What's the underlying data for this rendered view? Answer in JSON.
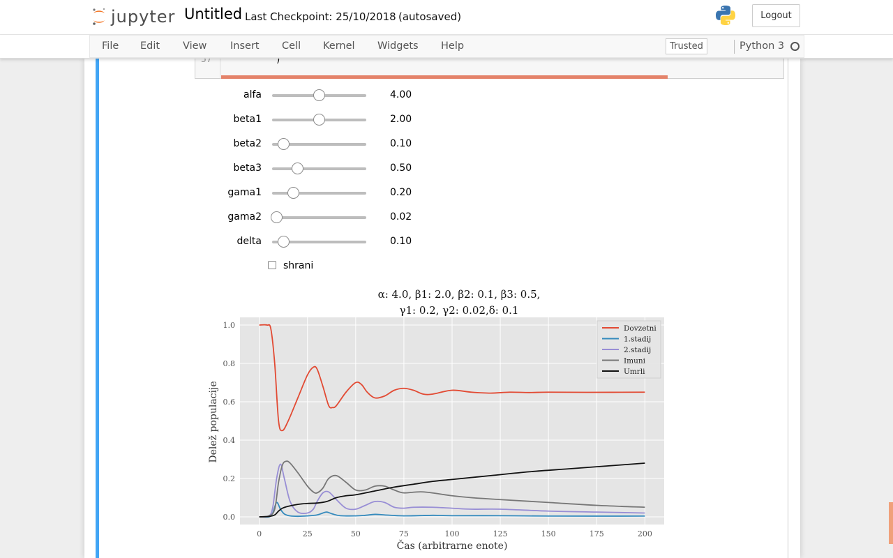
{
  "header": {
    "logo_text": "jupyter",
    "notebook_name": "Untitled",
    "checkpoint": "Last Checkpoint: 25/10/2018",
    "autosave": "(autosaved)",
    "logout_label": "Logout"
  },
  "menubar": {
    "items": [
      "File",
      "Edit",
      "View",
      "Insert",
      "Cell",
      "Kernel",
      "Widgets",
      "Help"
    ],
    "trusted_label": "Trusted",
    "kernel_name": "Python 3"
  },
  "cell": {
    "line_number": "57",
    "code_text": ")"
  },
  "widgets": {
    "sliders": [
      {
        "label": "alfa",
        "value": "4.00",
        "position": 0.5
      },
      {
        "label": "beta1",
        "value": "2.00",
        "position": 0.5
      },
      {
        "label": "beta2",
        "value": "0.10",
        "position": 0.1
      },
      {
        "label": "beta3",
        "value": "0.50",
        "position": 0.26
      },
      {
        "label": "gama1",
        "value": "0.20",
        "position": 0.21
      },
      {
        "label": "gama2",
        "value": "0.02",
        "position": 0.02
      },
      {
        "label": "delta",
        "value": "0.10",
        "position": 0.1
      }
    ],
    "checkbox": {
      "label": "shrani",
      "checked": false
    }
  },
  "chart_data": {
    "type": "line",
    "title_line1": "α: 4.0, β1: 2.0, β2: 0.1, β3: 0.5,",
    "title_line2": "γ1: 0.2, γ2: 0.02,δ: 0.1",
    "xlabel": "Čas (arbitrarne enote)",
    "ylabel": "Delež populacije",
    "xlim": [
      -10,
      210
    ],
    "ylim": [
      -0.04,
      1.04
    ],
    "xticks": [
      0,
      25,
      50,
      75,
      100,
      125,
      150,
      175,
      200
    ],
    "yticks": [
      0.0,
      0.2,
      0.4,
      0.6,
      0.8,
      1.0
    ],
    "grid": true,
    "legend_position": "top-right",
    "series": [
      {
        "name": "Dovzetni",
        "color": "#e24a33",
        "x": [
          0,
          4,
          6,
          8,
          10,
          12,
          15,
          20,
          25,
          28,
          30,
          33,
          36,
          38,
          40,
          45,
          50,
          53,
          56,
          60,
          65,
          70,
          75,
          80,
          85,
          90,
          100,
          110,
          120,
          130,
          140,
          150,
          170,
          200
        ],
        "y": [
          1.0,
          1.0,
          0.98,
          0.8,
          0.5,
          0.45,
          0.5,
          0.62,
          0.74,
          0.78,
          0.77,
          0.68,
          0.58,
          0.57,
          0.58,
          0.65,
          0.7,
          0.69,
          0.65,
          0.62,
          0.63,
          0.66,
          0.67,
          0.66,
          0.64,
          0.64,
          0.66,
          0.65,
          0.645,
          0.65,
          0.648,
          0.65,
          0.649,
          0.65
        ]
      },
      {
        "name": "1.stadij",
        "color": "#348abd",
        "x": [
          0,
          5,
          7,
          9,
          11,
          13,
          16,
          20,
          25,
          30,
          33,
          35,
          38,
          42,
          50,
          55,
          60,
          65,
          75,
          90,
          100,
          125,
          150,
          200
        ],
        "y": [
          0.0,
          0.0,
          0.02,
          0.075,
          0.04,
          0.015,
          0.005,
          0.003,
          0.005,
          0.01,
          0.02,
          0.025,
          0.015,
          0.006,
          0.005,
          0.008,
          0.013,
          0.01,
          0.005,
          0.008,
          0.006,
          0.006,
          0.004,
          0.004
        ]
      },
      {
        "name": "2.stadij",
        "color": "#988ed5",
        "x": [
          0,
          5,
          7,
          9,
          11,
          13,
          16,
          20,
          25,
          28,
          30,
          33,
          36,
          40,
          45,
          50,
          55,
          60,
          65,
          70,
          75,
          80,
          90,
          100,
          110,
          125,
          150,
          175,
          200
        ],
        "y": [
          0.0,
          0.005,
          0.05,
          0.2,
          0.275,
          0.2,
          0.08,
          0.025,
          0.02,
          0.04,
          0.08,
          0.125,
          0.13,
          0.09,
          0.045,
          0.04,
          0.06,
          0.08,
          0.075,
          0.05,
          0.045,
          0.05,
          0.05,
          0.045,
          0.04,
          0.04,
          0.03,
          0.025,
          0.02
        ]
      },
      {
        "name": "Imuni",
        "color": "#777777",
        "x": [
          0,
          5,
          8,
          10,
          12,
          14,
          16,
          20,
          25,
          28,
          30,
          33,
          36,
          40,
          45,
          50,
          55,
          60,
          65,
          70,
          75,
          85,
          100,
          110,
          125,
          150,
          175,
          200
        ],
        "y": [
          0.0,
          0.005,
          0.04,
          0.18,
          0.27,
          0.29,
          0.28,
          0.23,
          0.16,
          0.13,
          0.125,
          0.15,
          0.2,
          0.215,
          0.18,
          0.14,
          0.14,
          0.16,
          0.16,
          0.14,
          0.125,
          0.13,
          0.11,
          0.1,
          0.09,
          0.075,
          0.06,
          0.05
        ]
      },
      {
        "name": "Umrli",
        "color": "#111111",
        "x": [
          0,
          5,
          8,
          10,
          12,
          15,
          20,
          25,
          30,
          35,
          40,
          45,
          50,
          60,
          70,
          80,
          90,
          100,
          120,
          140,
          160,
          180,
          200
        ],
        "y": [
          0.0,
          0.002,
          0.01,
          0.03,
          0.045,
          0.055,
          0.065,
          0.07,
          0.072,
          0.08,
          0.1,
          0.11,
          0.115,
          0.135,
          0.155,
          0.17,
          0.185,
          0.195,
          0.215,
          0.235,
          0.25,
          0.265,
          0.28
        ]
      }
    ]
  }
}
